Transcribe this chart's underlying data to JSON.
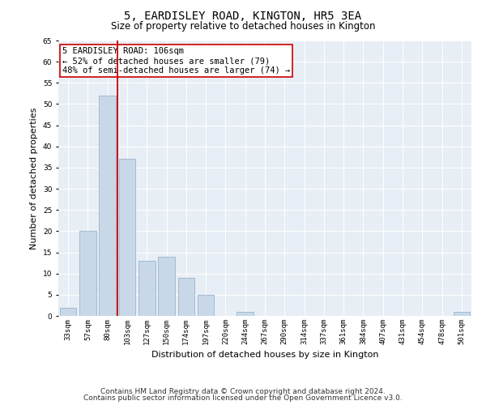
{
  "title": "5, EARDISLEY ROAD, KINGTON, HR5 3EA",
  "subtitle": "Size of property relative to detached houses in Kington",
  "xlabel": "Distribution of detached houses by size in Kington",
  "ylabel": "Number of detached properties",
  "categories": [
    "33sqm",
    "57sqm",
    "80sqm",
    "103sqm",
    "127sqm",
    "150sqm",
    "174sqm",
    "197sqm",
    "220sqm",
    "244sqm",
    "267sqm",
    "290sqm",
    "314sqm",
    "337sqm",
    "361sqm",
    "384sqm",
    "407sqm",
    "431sqm",
    "454sqm",
    "478sqm",
    "501sqm"
  ],
  "values": [
    2,
    20,
    52,
    37,
    13,
    14,
    9,
    5,
    0,
    1,
    0,
    0,
    0,
    0,
    0,
    0,
    0,
    0,
    0,
    0,
    1
  ],
  "bar_color": "#c8d8e8",
  "bar_edge_color": "#9ab4cc",
  "vline_color": "#cc0000",
  "vline_index": 2.5,
  "ylim": [
    0,
    65
  ],
  "annotation_text": "5 EARDISLEY ROAD: 106sqm\n← 52% of detached houses are smaller (79)\n48% of semi-detached houses are larger (74) →",
  "annotation_box_facecolor": "#ffffff",
  "annotation_box_edgecolor": "#cc0000",
  "footer1": "Contains HM Land Registry data © Crown copyright and database right 2024.",
  "footer2": "Contains public sector information licensed under the Open Government Licence v3.0.",
  "plot_bg_color": "#e8eef5",
  "title_fontsize": 10,
  "subtitle_fontsize": 8.5,
  "axis_label_fontsize": 8,
  "tick_fontsize": 6.5,
  "footer_fontsize": 6.5,
  "annotation_fontsize": 7.5
}
